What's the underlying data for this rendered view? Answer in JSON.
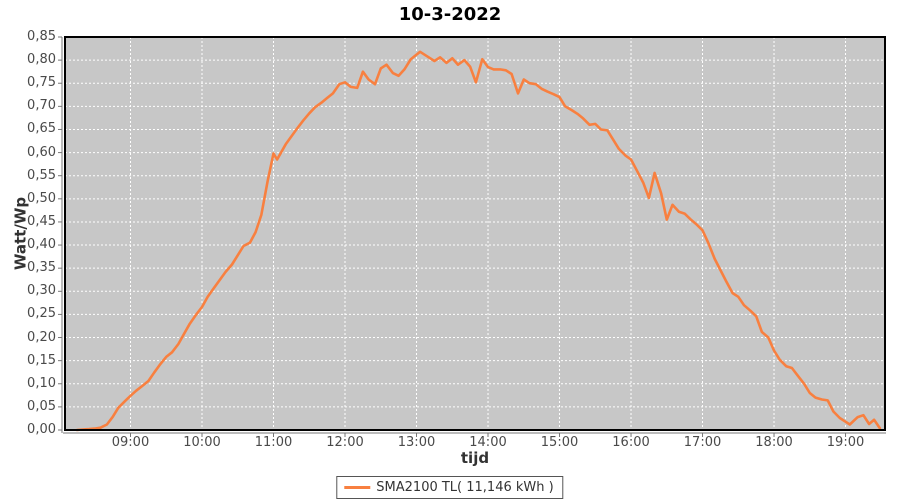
{
  "title": "10-3-2022",
  "legend": {
    "label": "SMA2100 TL( 11,146 kWh )"
  },
  "colors": {
    "series": "#F88040",
    "plot_background": "#C7C7C7",
    "gridline": "#FFFFFF",
    "plot_border": "#000000",
    "axis": "#777777",
    "tick_label": "#4a4a4a"
  },
  "chart_data": {
    "type": "line",
    "title": "10-3-2022",
    "xlabel": "tijd",
    "ylabel": "Watt/Wp",
    "grid": "white dashed gridlines on gray plot background",
    "legend_position": "bottom-center",
    "x_tick_labels": [
      "09:00",
      "10:00",
      "11:00",
      "12:00",
      "13:00",
      "14:00",
      "15:00",
      "16:00",
      "17:00",
      "18:00",
      "19:00"
    ],
    "x_tick_hours": [
      9,
      10,
      11,
      12,
      13,
      14,
      15,
      16,
      17,
      18,
      19
    ],
    "y_tick_labels": [
      "0,00",
      "0,05",
      "0,10",
      "0,15",
      "0,20",
      "0,25",
      "0,30",
      "0,35",
      "0,40",
      "0,45",
      "0,50",
      "0,55",
      "0,60",
      "0,65",
      "0,70",
      "0,75",
      "0,80",
      "0,85"
    ],
    "y_tick_values": [
      0.0,
      0.05,
      0.1,
      0.15,
      0.2,
      0.25,
      0.3,
      0.35,
      0.4,
      0.45,
      0.5,
      0.55,
      0.6,
      0.65,
      0.7,
      0.75,
      0.8,
      0.85
    ],
    "x_domain_hours": [
      8.084,
      19.552
    ],
    "ylim": [
      0,
      0.85
    ],
    "series": [
      {
        "name": "SMA2100 TL( 11,146 kWh )",
        "color": "#F88040",
        "points_hour_value": [
          [
            8.25,
            0.0
          ],
          [
            8.33,
            0.001
          ],
          [
            8.42,
            0.002
          ],
          [
            8.5,
            0.003
          ],
          [
            8.58,
            0.005
          ],
          [
            8.67,
            0.012
          ],
          [
            8.75,
            0.028
          ],
          [
            8.83,
            0.048
          ],
          [
            8.92,
            0.062
          ],
          [
            9.0,
            0.074
          ],
          [
            9.08,
            0.085
          ],
          [
            9.17,
            0.096
          ],
          [
            9.25,
            0.106
          ],
          [
            9.33,
            0.124
          ],
          [
            9.42,
            0.143
          ],
          [
            9.5,
            0.158
          ],
          [
            9.58,
            0.168
          ],
          [
            9.67,
            0.186
          ],
          [
            9.75,
            0.208
          ],
          [
            9.83,
            0.23
          ],
          [
            9.92,
            0.25
          ],
          [
            10.0,
            0.266
          ],
          [
            10.08,
            0.288
          ],
          [
            10.17,
            0.308
          ],
          [
            10.25,
            0.325
          ],
          [
            10.33,
            0.342
          ],
          [
            10.42,
            0.358
          ],
          [
            10.5,
            0.378
          ],
          [
            10.58,
            0.398
          ],
          [
            10.67,
            0.405
          ],
          [
            10.75,
            0.428
          ],
          [
            10.83,
            0.465
          ],
          [
            10.92,
            0.54
          ],
          [
            11.0,
            0.598
          ],
          [
            11.05,
            0.585
          ],
          [
            11.17,
            0.618
          ],
          [
            11.25,
            0.635
          ],
          [
            11.33,
            0.652
          ],
          [
            11.42,
            0.67
          ],
          [
            11.5,
            0.685
          ],
          [
            11.58,
            0.698
          ],
          [
            11.67,
            0.708
          ],
          [
            11.75,
            0.718
          ],
          [
            11.83,
            0.728
          ],
          [
            11.92,
            0.748
          ],
          [
            12.0,
            0.752
          ],
          [
            12.08,
            0.742
          ],
          [
            12.17,
            0.74
          ],
          [
            12.25,
            0.775
          ],
          [
            12.33,
            0.758
          ],
          [
            12.42,
            0.748
          ],
          [
            12.5,
            0.782
          ],
          [
            12.58,
            0.79
          ],
          [
            12.67,
            0.772
          ],
          [
            12.75,
            0.766
          ],
          [
            12.83,
            0.78
          ],
          [
            12.92,
            0.802
          ],
          [
            13.0,
            0.812
          ],
          [
            13.05,
            0.818
          ],
          [
            13.17,
            0.806
          ],
          [
            13.25,
            0.798
          ],
          [
            13.33,
            0.806
          ],
          [
            13.42,
            0.794
          ],
          [
            13.5,
            0.804
          ],
          [
            13.58,
            0.79
          ],
          [
            13.67,
            0.8
          ],
          [
            13.75,
            0.786
          ],
          [
            13.83,
            0.752
          ],
          [
            13.92,
            0.802
          ],
          [
            14.0,
            0.785
          ],
          [
            14.08,
            0.78
          ],
          [
            14.17,
            0.78
          ],
          [
            14.25,
            0.778
          ],
          [
            14.33,
            0.77
          ],
          [
            14.42,
            0.728
          ],
          [
            14.5,
            0.758
          ],
          [
            14.58,
            0.75
          ],
          [
            14.67,
            0.748
          ],
          [
            14.75,
            0.738
          ],
          [
            14.83,
            0.732
          ],
          [
            14.92,
            0.726
          ],
          [
            15.0,
            0.72
          ],
          [
            15.08,
            0.7
          ],
          [
            15.17,
            0.692
          ],
          [
            15.25,
            0.684
          ],
          [
            15.33,
            0.674
          ],
          [
            15.42,
            0.66
          ],
          [
            15.5,
            0.662
          ],
          [
            15.58,
            0.65
          ],
          [
            15.67,
            0.648
          ],
          [
            15.75,
            0.628
          ],
          [
            15.83,
            0.608
          ],
          [
            15.92,
            0.594
          ],
          [
            16.0,
            0.585
          ],
          [
            16.08,
            0.562
          ],
          [
            16.17,
            0.535
          ],
          [
            16.25,
            0.502
          ],
          [
            16.33,
            0.556
          ],
          [
            16.42,
            0.512
          ],
          [
            16.5,
            0.455
          ],
          [
            16.58,
            0.487
          ],
          [
            16.67,
            0.472
          ],
          [
            16.75,
            0.468
          ],
          [
            16.83,
            0.456
          ],
          [
            16.92,
            0.444
          ],
          [
            17.0,
            0.432
          ],
          [
            17.08,
            0.405
          ],
          [
            17.17,
            0.37
          ],
          [
            17.25,
            0.346
          ],
          [
            17.33,
            0.322
          ],
          [
            17.42,
            0.296
          ],
          [
            17.5,
            0.288
          ],
          [
            17.58,
            0.27
          ],
          [
            17.67,
            0.258
          ],
          [
            17.75,
            0.246
          ],
          [
            17.83,
            0.212
          ],
          [
            17.92,
            0.2
          ],
          [
            18.0,
            0.172
          ],
          [
            18.08,
            0.152
          ],
          [
            18.17,
            0.138
          ],
          [
            18.25,
            0.134
          ],
          [
            18.33,
            0.118
          ],
          [
            18.42,
            0.1
          ],
          [
            18.5,
            0.08
          ],
          [
            18.58,
            0.07
          ],
          [
            18.67,
            0.066
          ],
          [
            18.75,
            0.064
          ],
          [
            18.83,
            0.04
          ],
          [
            18.92,
            0.026
          ],
          [
            19.0,
            0.018
          ],
          [
            19.06,
            0.012
          ],
          [
            19.17,
            0.028
          ],
          [
            19.25,
            0.032
          ],
          [
            19.33,
            0.013
          ],
          [
            19.4,
            0.022
          ],
          [
            19.48,
            0.004
          ]
        ]
      }
    ]
  }
}
